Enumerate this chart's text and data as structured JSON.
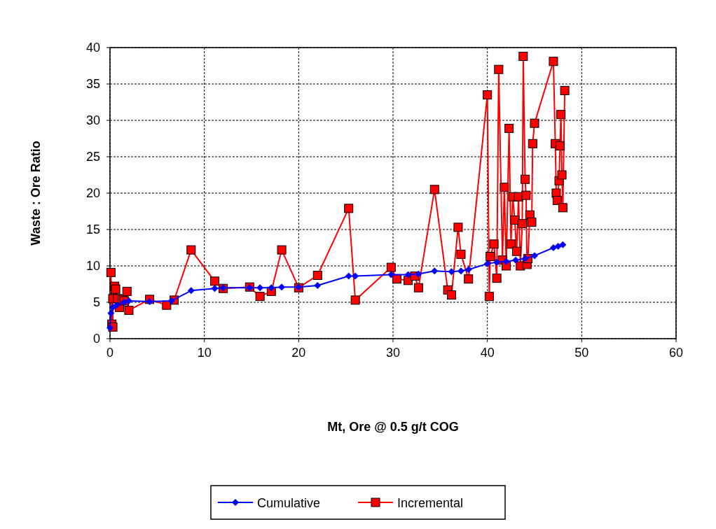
{
  "chart_data": {
    "type": "line",
    "xlabel": "Mt, Ore @ 0.5 g/t COG",
    "ylabel": "Waste : Ore Ratio",
    "xlim": [
      0,
      60
    ],
    "xticks": [
      0,
      10,
      20,
      30,
      40,
      50,
      60
    ],
    "ylim": [
      0,
      40
    ],
    "yticks": [
      0,
      5,
      10,
      15,
      20,
      25,
      30,
      35,
      40
    ],
    "grid": true,
    "legend": "bottom",
    "series": [
      {
        "name": "Cumulative",
        "color": "#0000ff",
        "marker": "diamond",
        "x": [
          0,
          0.1,
          0.3,
          0.7,
          1.5,
          2,
          4.2,
          6.5,
          8.6,
          11.1,
          12,
          14.8,
          15.9,
          17.1,
          18.2,
          20,
          22,
          25.3,
          26,
          29.8,
          31.6,
          32.7,
          34.4,
          36.2,
          37.2,
          38,
          40,
          41,
          42,
          43,
          44,
          45,
          47,
          47.5,
          48
        ],
        "values": [
          1.5,
          3.5,
          4.3,
          4.6,
          5,
          5.2,
          5.1,
          5.2,
          6.6,
          6.9,
          7,
          7,
          7,
          7,
          7.1,
          7.1,
          7.3,
          8.6,
          8.6,
          8.8,
          8.8,
          8.9,
          9.3,
          9.2,
          9.3,
          9.5,
          10.3,
          10.5,
          10.6,
          10.8,
          11,
          11.4,
          12.5,
          12.7,
          12.9
        ]
      },
      {
        "name": "Incremental",
        "color": "#ff0000",
        "marker": "square",
        "x": [
          0.1,
          0.2,
          0.3,
          0.3,
          0.5,
          0.6,
          0.8,
          1.0,
          1.3,
          1.5,
          1.8,
          2.0,
          4.2,
          6,
          6.8,
          8.6,
          11.1,
          12,
          14.8,
          15.9,
          17.1,
          18.2,
          20,
          22,
          25.3,
          26,
          29.8,
          30.4,
          31.6,
          32.3,
          32.7,
          34.4,
          35.8,
          36.2,
          36.9,
          37.2,
          38,
          40,
          40.2,
          40.3,
          40.7,
          41,
          41.2,
          41.6,
          41.8,
          42,
          42.3,
          42.5,
          42.7,
          42.9,
          43.1,
          43.3,
          43.5,
          43.7,
          43.8,
          44,
          44.1,
          44.2,
          44.3,
          44.5,
          44.7,
          44.8,
          45,
          47,
          47.2,
          47.3,
          47.4,
          47.6,
          47.7,
          47.8,
          47.9,
          48,
          48.2
        ],
        "values": [
          9.1,
          2,
          1.6,
          5.5,
          7.2,
          6.8,
          5.5,
          4.3,
          5.4,
          5.2,
          6.5,
          3.9,
          5.4,
          4.6,
          5.3,
          12.2,
          7.9,
          6.9,
          7.1,
          5.8,
          6.5,
          12.2,
          7,
          8.7,
          17.9,
          5.3,
          9.8,
          8.2,
          8,
          8.6,
          7,
          20.5,
          6.7,
          6,
          15.3,
          11.6,
          8.2,
          33.5,
          5.8,
          11.3,
          13,
          8.3,
          37,
          10.8,
          20.8,
          10,
          28.9,
          13,
          19.5,
          16.3,
          12,
          19.5,
          10,
          15.8,
          38.8,
          21.9,
          19.7,
          10.2,
          11,
          17,
          16,
          26.8,
          29.6,
          38.1,
          26.8,
          20,
          19,
          21.7,
          26.5,
          30.8,
          22.5,
          18,
          34.1
        ]
      }
    ]
  }
}
